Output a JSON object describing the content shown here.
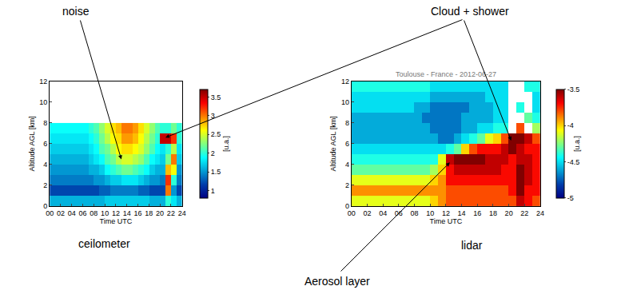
{
  "chart_data": [
    {
      "type": "heatmap",
      "label": "ceilometer",
      "xlabel": "Time UTC",
      "ylabel": "Altitude AGL [km]",
      "grid": false,
      "xlim": [
        0,
        24
      ],
      "xticks": [
        {
          "value": 0,
          "label": "00"
        },
        {
          "value": 2,
          "label": "02"
        },
        {
          "value": 4,
          "label": "04"
        },
        {
          "value": 6,
          "label": "06"
        },
        {
          "value": 8,
          "label": "08"
        },
        10,
        12,
        14,
        16,
        18,
        20,
        22,
        24
      ],
      "ylim": [
        0,
        12
      ],
      "yticks": [
        0,
        2,
        4,
        6,
        8,
        10,
        12
      ],
      "colorbar": {
        "title": "[u.a.]",
        "range": [
          0.8,
          3.7
        ],
        "ticks": [
          1,
          1.5,
          2,
          2.5,
          3,
          3.5
        ]
      },
      "x": [
        0.5,
        1.5,
        2.5,
        3.5,
        4.5,
        5.5,
        6.5,
        7.5,
        8.5,
        9.5,
        10.5,
        11.5,
        12.5,
        13.5,
        14.5,
        15.5,
        16.5,
        17.5,
        18.5,
        19.5,
        20.5,
        21.5,
        22.5,
        23.5
      ],
      "y": [
        0.5,
        1.5,
        2.5,
        3.5,
        4.5,
        5.5,
        6.5,
        7.5
      ],
      "z": [
        [
          1.6,
          1.6,
          1.6,
          1.6,
          1.6,
          1.6,
          1.6,
          1.6,
          1.6,
          1.6,
          1.7,
          1.7,
          1.7,
          1.7,
          1.7,
          1.7,
          1.7,
          1.7,
          1.6,
          1.6,
          1.6,
          2.0,
          1.8,
          1.6
        ],
        [
          1.2,
          1.2,
          1.2,
          1.2,
          1.2,
          1.2,
          1.2,
          1.2,
          1.2,
          1.3,
          1.3,
          1.4,
          1.4,
          1.4,
          1.4,
          1.4,
          1.3,
          1.3,
          1.2,
          1.2,
          1.2,
          3.0,
          1.5,
          1.2
        ],
        [
          1.4,
          1.4,
          1.4,
          1.4,
          1.4,
          1.4,
          1.4,
          1.4,
          1.5,
          1.5,
          1.6,
          1.7,
          1.7,
          1.8,
          1.8,
          1.8,
          1.7,
          1.6,
          1.5,
          1.5,
          1.4,
          3.2,
          2.0,
          1.4
        ],
        [
          1.5,
          1.5,
          1.5,
          1.5,
          1.5,
          1.5,
          1.5,
          1.6,
          1.6,
          1.7,
          1.9,
          2.0,
          2.1,
          2.2,
          2.2,
          2.1,
          2.0,
          1.9,
          1.7,
          1.6,
          1.6,
          2.8,
          2.6,
          1.5
        ],
        [
          1.6,
          1.6,
          1.6,
          1.6,
          1.6,
          1.6,
          1.6,
          1.7,
          1.8,
          1.9,
          2.1,
          2.2,
          2.4,
          2.5,
          2.5,
          2.4,
          2.3,
          2.1,
          1.9,
          1.8,
          1.7,
          2.2,
          3.0,
          1.7
        ],
        [
          1.7,
          1.7,
          1.7,
          1.7,
          1.7,
          1.7,
          1.7,
          1.8,
          1.9,
          2.1,
          2.2,
          2.4,
          2.6,
          2.7,
          2.7,
          2.6,
          2.5,
          2.3,
          2.1,
          1.9,
          1.8,
          2.0,
          2.4,
          1.8
        ],
        [
          1.8,
          1.8,
          1.8,
          1.8,
          1.8,
          1.8,
          1.8,
          1.9,
          2.0,
          2.2,
          2.4,
          2.6,
          2.7,
          2.9,
          2.9,
          2.8,
          2.6,
          2.4,
          2.2,
          2.0,
          3.5,
          3.5,
          3.2,
          2.0
        ],
        [
          1.9,
          1.9,
          1.9,
          1.9,
          1.9,
          1.9,
          1.9,
          2.0,
          2.1,
          2.3,
          2.5,
          2.7,
          2.8,
          3.0,
          3.0,
          2.9,
          2.7,
          2.5,
          2.3,
          2.1,
          2.0,
          2.0,
          2.2,
          2.0
        ]
      ]
    },
    {
      "type": "heatmap",
      "label": "lidar",
      "title": "Toulouse - France - 2012-06-27",
      "xlabel": "Time UTC",
      "ylabel": "Altitude AGL [km]",
      "grid": false,
      "xlim": [
        0,
        24
      ],
      "xticks": [
        {
          "value": 0,
          "label": "00"
        },
        {
          "value": 2,
          "label": "02"
        },
        {
          "value": 4,
          "label": "04"
        },
        {
          "value": 6,
          "label": "06"
        },
        {
          "value": 8,
          "label": "08"
        },
        10,
        12,
        14,
        16,
        18,
        20,
        22,
        24
      ],
      "ylim": [
        0,
        12
      ],
      "yticks": [
        0,
        2,
        4,
        6,
        8,
        10,
        12
      ],
      "colorbar": {
        "title": "[u.a.]",
        "range": [
          -5,
          -3.5
        ],
        "ticks": [
          -5,
          -4.5,
          -4,
          -3.5
        ]
      },
      "x": [
        0.5,
        1.5,
        2.5,
        3.5,
        4.5,
        5.5,
        6.5,
        7.5,
        8.5,
        9.5,
        10.5,
        11.5,
        12.5,
        13.5,
        14.5,
        15.5,
        16.5,
        17.5,
        18.5,
        19.5,
        20.5,
        21.5,
        22.5,
        23.5
      ],
      "y": [
        0.5,
        1.5,
        2.5,
        3.5,
        4.5,
        5.5,
        6.5,
        7.5,
        8.5,
        9.5,
        10.5,
        11.5
      ],
      "z": [
        [
          -4.1,
          -4.1,
          -4.1,
          -4.1,
          -4.1,
          -4.1,
          -4.1,
          -4.1,
          -4.1,
          -4.1,
          -4.0,
          -3.9,
          -3.8,
          -3.8,
          -3.8,
          -3.8,
          -3.8,
          -3.8,
          -3.8,
          -3.8,
          -3.8,
          -3.6,
          -3.7,
          -3.8
        ],
        [
          -3.9,
          -3.9,
          -3.9,
          -3.9,
          -3.9,
          -3.9,
          -3.9,
          -3.9,
          -3.9,
          -3.9,
          -3.9,
          -3.9,
          -3.8,
          -3.8,
          -3.8,
          -3.8,
          -3.8,
          -3.8,
          -3.8,
          -3.8,
          -3.7,
          -3.5,
          -3.7,
          -3.7
        ],
        [
          -4.1,
          -4.1,
          -4.1,
          -4.1,
          -4.1,
          -4.1,
          -4.1,
          -4.1,
          -4.1,
          -4.1,
          -4.0,
          -3.9,
          -3.7,
          -3.7,
          -3.7,
          -3.7,
          -3.7,
          -3.7,
          -3.7,
          -3.7,
          -3.7,
          -3.5,
          -3.6,
          -3.7
        ],
        [
          -4.3,
          -4.3,
          -4.3,
          -4.3,
          -4.3,
          -4.3,
          -4.3,
          -4.3,
          -4.3,
          -4.3,
          -4.2,
          -4.0,
          -3.7,
          -3.6,
          -3.6,
          -3.6,
          -3.6,
          -3.6,
          -3.6,
          -3.7,
          -3.7,
          -3.5,
          -3.6,
          -3.7
        ],
        [
          -4.4,
          -4.4,
          -4.4,
          -4.4,
          -4.4,
          -4.4,
          -4.4,
          -4.4,
          -4.4,
          -4.4,
          -4.4,
          -4.1,
          -3.6,
          -3.5,
          -3.5,
          -3.5,
          -3.5,
          -3.6,
          -3.6,
          -3.6,
          -3.7,
          -3.6,
          -3.6,
          -3.7
        ],
        [
          -4.5,
          -4.5,
          -4.5,
          -4.5,
          -4.5,
          -4.5,
          -4.5,
          -4.5,
          -4.5,
          -4.5,
          -4.5,
          -4.5,
          -4.4,
          -4.3,
          -4.0,
          -3.8,
          -3.7,
          -3.7,
          -3.7,
          -3.6,
          -3.5,
          -3.6,
          -3.7,
          -3.7
        ],
        [
          -4.6,
          -4.6,
          -4.6,
          -4.6,
          -4.6,
          -4.6,
          -4.6,
          -4.6,
          -4.6,
          -4.6,
          -4.6,
          -4.7,
          -4.7,
          -4.6,
          -4.5,
          -4.4,
          -4.3,
          -4.1,
          -4.0,
          -3.8,
          -3.5,
          -3.5,
          -3.6,
          -3.8
        ],
        [
          -4.6,
          -4.6,
          -4.6,
          -4.6,
          -4.6,
          -4.6,
          -4.6,
          -4.6,
          -4.6,
          -4.6,
          -4.7,
          -4.7,
          -4.7,
          -4.7,
          -4.6,
          -4.6,
          -4.5,
          -4.5,
          -4.4,
          -4.4,
          null,
          -3.8,
          null,
          -4.2
        ],
        [
          -4.6,
          -4.6,
          -4.6,
          -4.6,
          -4.6,
          -4.6,
          -4.6,
          -4.6,
          -4.6,
          -4.7,
          -4.7,
          -4.7,
          -4.7,
          -4.7,
          -4.6,
          -4.6,
          -4.6,
          -4.6,
          -4.5,
          -4.5,
          null,
          null,
          -4.3,
          -4.4
        ],
        [
          -4.5,
          -4.5,
          -4.5,
          -4.5,
          -4.5,
          -4.5,
          -4.5,
          -4.5,
          -4.6,
          -4.6,
          -4.7,
          -4.7,
          -4.7,
          -4.7,
          -4.7,
          -4.6,
          -4.6,
          -4.6,
          -4.5,
          -4.5,
          null,
          -4.4,
          null,
          -4.5
        ],
        [
          -4.5,
          -4.5,
          -4.5,
          -4.5,
          -4.5,
          -4.5,
          -4.5,
          -4.5,
          -4.5,
          -4.5,
          -4.6,
          -4.6,
          -4.6,
          -4.6,
          -4.6,
          -4.6,
          -4.6,
          -4.5,
          -4.5,
          -4.5,
          null,
          null,
          null,
          -4.5
        ],
        [
          -4.4,
          -4.4,
          -4.4,
          -4.4,
          -4.4,
          -4.4,
          -4.4,
          -4.4,
          -4.4,
          -4.4,
          -4.5,
          -4.5,
          -4.5,
          -4.5,
          -4.5,
          -4.5,
          -4.5,
          -4.5,
          -4.5,
          -4.5,
          null,
          null,
          -4.4,
          -4.4
        ]
      ]
    }
  ],
  "annotations": [
    {
      "text": "noise",
      "points": [
        {
          "chart": 0,
          "x": 13,
          "y": 4.5
        }
      ]
    },
    {
      "text": "Cloud + shower",
      "points": [
        {
          "chart": 0,
          "x": 21,
          "y": 6.6
        },
        {
          "chart": 1,
          "x": 20.3,
          "y": 6.3
        }
      ]
    },
    {
      "text": "Aerosol layer",
      "points": [
        {
          "chart": 1,
          "x": 12.5,
          "y": 4.2
        }
      ]
    }
  ]
}
